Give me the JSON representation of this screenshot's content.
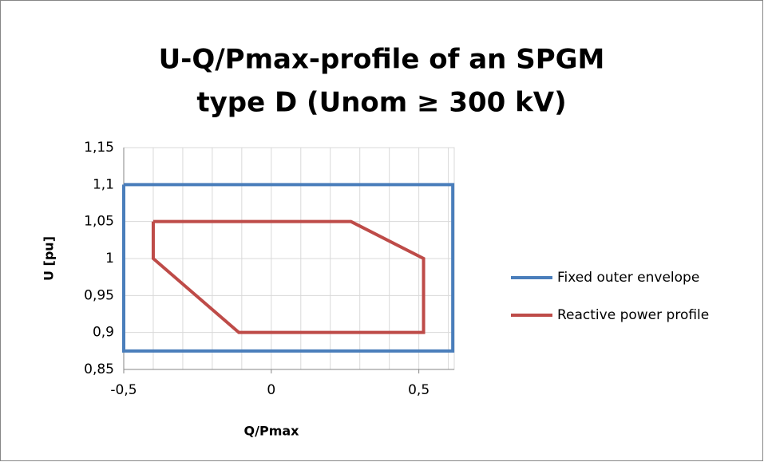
{
  "chart_data": {
    "type": "scatter",
    "title": [
      "U-Q/Pmax-profile of an SPGM",
      "type D (Unom ≥ 300 kV)"
    ],
    "x_label": "Q/Pmax",
    "y_label": "U [pu]",
    "xlim": [
      -0.5,
      0.62
    ],
    "ylim": [
      0.85,
      1.15
    ],
    "xticks": [
      {
        "value": -0.5,
        "label": "-0,5"
      },
      0,
      {
        "value": 0.5,
        "label": "0,5"
      }
    ],
    "yticks": [
      {
        "value": 0.85,
        "label": "0,85"
      },
      {
        "value": 0.9,
        "label": "0,9"
      },
      {
        "value": 0.95,
        "label": "0,95"
      },
      1,
      {
        "value": 1.05,
        "label": "1,05"
      },
      {
        "value": 1.1,
        "label": "1,1"
      },
      {
        "value": 1.15,
        "label": "1,15"
      }
    ],
    "xgrid": [
      -0.4,
      -0.3,
      -0.2,
      -0.1,
      0,
      0.1,
      0.2,
      0.3,
      0.4,
      0.5,
      0.6
    ],
    "grid": true,
    "legend": "right",
    "series": [
      {
        "name": "Fixed outer envelope",
        "color": "#4a7ebb",
        "x": [
          -0.5,
          0.615,
          0.615,
          -0.5,
          -0.5
        ],
        "values": [
          1.1,
          1.1,
          0.875,
          0.875,
          1.1
        ]
      },
      {
        "name": "Reactive power profile",
        "color": "#be4b48",
        "x": [
          -0.4,
          0.27,
          0.516,
          0.516,
          -0.11,
          -0.4,
          -0.4
        ],
        "values": [
          1.05,
          1.05,
          1.0,
          0.9,
          0.9,
          1.0,
          1.05
        ]
      }
    ]
  }
}
